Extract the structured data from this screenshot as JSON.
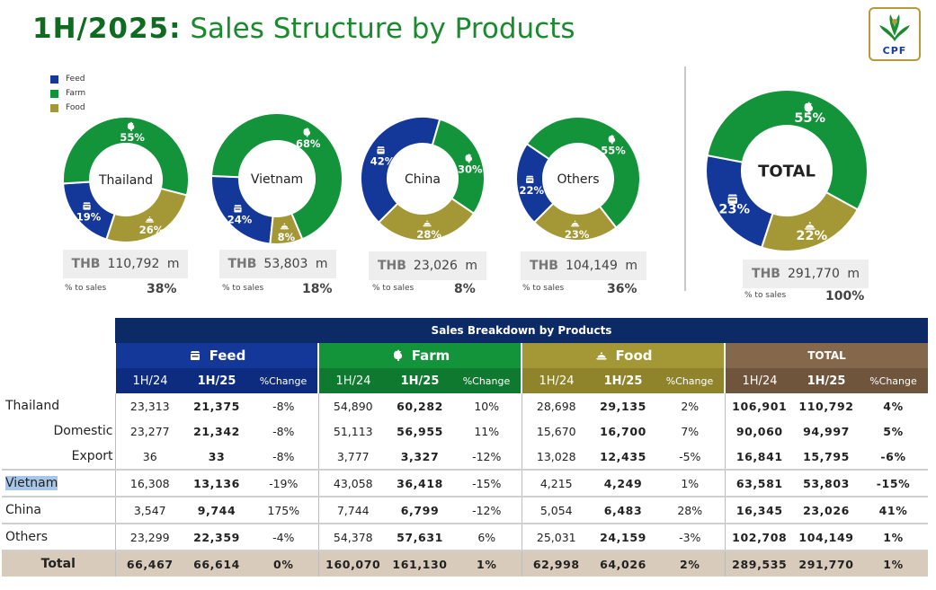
{
  "header": {
    "title_bold": "1H/2025:",
    "title_rest": "Sales Structure by Products",
    "logo_text": "CPF"
  },
  "legend": [
    {
      "label": "Feed",
      "color": "#13389a"
    },
    {
      "label": "Farm",
      "color": "#14943a"
    },
    {
      "label": "Food",
      "color": "#a49836"
    }
  ],
  "chart_data": [
    {
      "type": "pie",
      "title": "Thailand",
      "categories": [
        "Feed",
        "Farm",
        "Food"
      ],
      "values": [
        19,
        55,
        26
      ],
      "value_labels": [
        "19%",
        "55%",
        "26%"
      ],
      "sales": "110,792",
      "currency": "THB",
      "unit": "m",
      "pct_label": "% to sales",
      "pct_to_sales": "38%"
    },
    {
      "type": "pie",
      "title": "Vietnam",
      "categories": [
        "Feed",
        "Farm",
        "Food"
      ],
      "values": [
        24,
        68,
        8
      ],
      "value_labels": [
        "24%",
        "68%",
        "8%"
      ],
      "sales": "53,803",
      "currency": "THB",
      "unit": "m",
      "pct_label": "% to sales",
      "pct_to_sales": "18%"
    },
    {
      "type": "pie",
      "title": "China",
      "categories": [
        "Feed",
        "Farm",
        "Food"
      ],
      "values": [
        42,
        30,
        28
      ],
      "value_labels": [
        "42%",
        "30%",
        "28%"
      ],
      "sales": "23,026",
      "currency": "THB",
      "unit": "m",
      "pct_label": "% to sales",
      "pct_to_sales": "8%"
    },
    {
      "type": "pie",
      "title": "Others",
      "categories": [
        "Feed",
        "Farm",
        "Food"
      ],
      "values": [
        22,
        55,
        23
      ],
      "value_labels": [
        "22%",
        "55%",
        "23%"
      ],
      "sales": "104,149",
      "currency": "THB",
      "unit": "m",
      "pct_label": "% to sales",
      "pct_to_sales": "36%"
    },
    {
      "type": "pie",
      "title": "TOTAL",
      "categories": [
        "Feed",
        "Farm",
        "Food"
      ],
      "values": [
        23,
        55,
        22
      ],
      "value_labels": [
        "23%",
        "55%",
        "22%"
      ],
      "sales": "291,770",
      "currency": "THB",
      "unit": "m",
      "pct_label": "% to sales",
      "pct_to_sales": "100%"
    }
  ],
  "table": {
    "title": "Sales Breakdown by Products",
    "groups": [
      {
        "label": "Feed",
        "icon": "feed-bag-icon",
        "color": "#13389a",
        "sub_color": "#0e2c7f",
        "cols": [
          "1H/24",
          "1H/25",
          "%Change"
        ]
      },
      {
        "label": "Farm",
        "icon": "chicken-icon",
        "color": "#14943a",
        "sub_color": "#0f7a2f",
        "cols": [
          "1H/24",
          "1H/25",
          "%Change"
        ]
      },
      {
        "label": "Food",
        "icon": "food-dish-icon",
        "color": "#a49836",
        "sub_color": "#8f842c",
        "cols": [
          "1H/24",
          "1H/25",
          "%Change"
        ]
      },
      {
        "label": "TOTAL",
        "icon": "",
        "color": "#85684c",
        "sub_color": "#6f553c",
        "cols": [
          "1H/24",
          "1H/25",
          "%Change"
        ]
      }
    ],
    "rows": [
      {
        "label": "Thailand",
        "indent": false,
        "selected": false,
        "cells": [
          "23,313",
          "21,375",
          "-8%",
          "54,890",
          "60,282",
          "10%",
          "28,698",
          "29,135",
          "2%",
          "106,901",
          "110,792",
          "4%"
        ]
      },
      {
        "label": "Domestic",
        "indent": true,
        "selected": false,
        "cells": [
          "23,277",
          "21,342",
          "-8%",
          "51,113",
          "56,955",
          "11%",
          "15,670",
          "16,700",
          "7%",
          "90,060",
          "94,997",
          "5%"
        ]
      },
      {
        "label": "Export",
        "indent": true,
        "selected": false,
        "cells": [
          "36",
          "33",
          "-8%",
          "3,777",
          "3,327",
          "-12%",
          "13,028",
          "12,435",
          "-5%",
          "16,841",
          "15,795",
          "-6%"
        ]
      },
      {
        "label": "Vietnam",
        "indent": false,
        "selected": true,
        "cells": [
          "16,308",
          "13,136",
          "-19%",
          "43,058",
          "36,418",
          "-15%",
          "4,215",
          "4,249",
          "1%",
          "63,581",
          "53,803",
          "-15%"
        ]
      },
      {
        "label": "China",
        "indent": false,
        "selected": false,
        "cells": [
          "3,547",
          "9,744",
          "175%",
          "7,744",
          "6,799",
          "-12%",
          "5,054",
          "6,483",
          "28%",
          "16,345",
          "23,026",
          "41%"
        ]
      },
      {
        "label": "Others",
        "indent": false,
        "selected": false,
        "cells": [
          "23,299",
          "22,359",
          "-4%",
          "54,378",
          "57,631",
          "6%",
          "25,031",
          "24,159",
          "-3%",
          "102,708",
          "104,149",
          "1%"
        ]
      },
      {
        "label": "Total",
        "indent": false,
        "selected": false,
        "total": true,
        "cells": [
          "66,467",
          "66,614",
          "0%",
          "160,070",
          "161,130",
          "1%",
          "62,998",
          "64,026",
          "2%",
          "289,535",
          "291,770",
          "1%"
        ]
      }
    ]
  }
}
